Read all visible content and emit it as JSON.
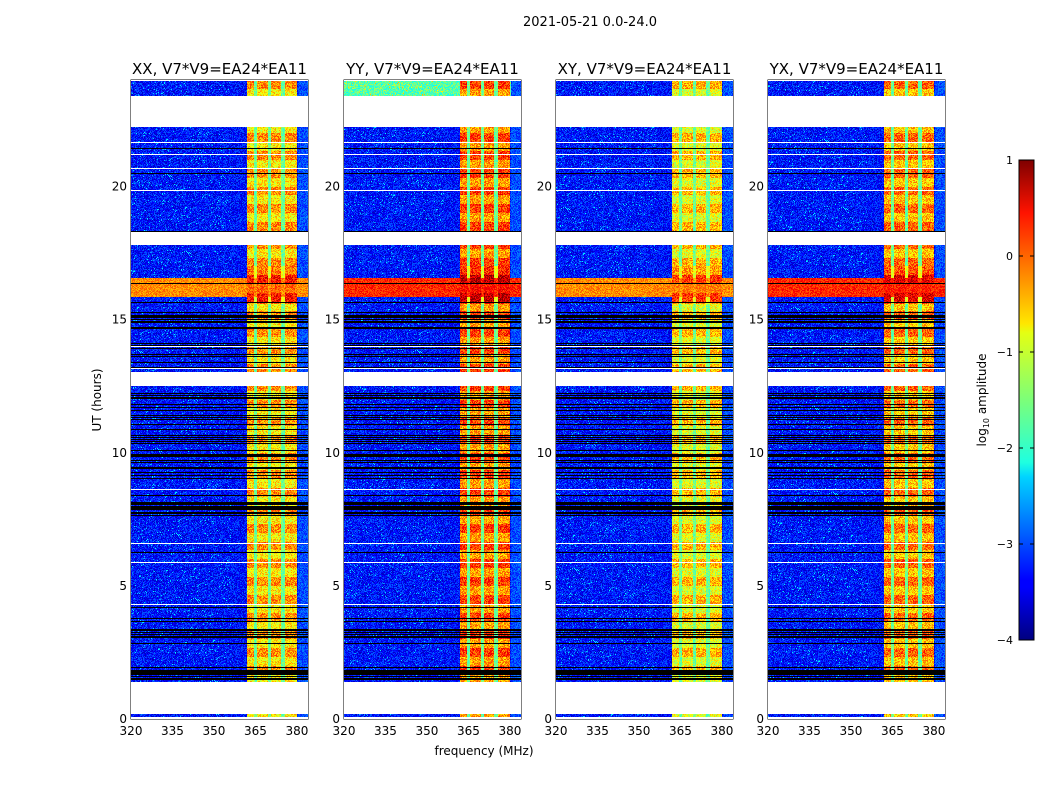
{
  "chart_data": {
    "type": "heatmap",
    "suptitle": "2021-05-21 0.0-24.0",
    "xlabel": "frequency (MHz)",
    "ylabel": "UT (hours)",
    "xlim": [
      320,
      384
    ],
    "ylim": [
      0,
      24
    ],
    "xticks": [
      320,
      335,
      350,
      365,
      380
    ],
    "yticks": [
      0,
      5,
      10,
      15,
      20
    ],
    "panels": [
      {
        "id": "xx",
        "title": "XX, V7*V9=EA24*EA11",
        "rfi_level": -0.6
      },
      {
        "id": "yy",
        "title": "YY, V7*V9=EA24*EA11",
        "rfi_level": -0.2
      },
      {
        "id": "xy",
        "title": "XY, V7*V9=EA24*EA11",
        "rfi_level": -0.8
      },
      {
        "id": "yx",
        "title": "YX, V7*V9=EA24*EA11",
        "rfi_level": -0.4
      }
    ],
    "rfi_band_mhz": [
      362,
      380
    ],
    "rfi_notch_channels_mhz": [
      365,
      370,
      375
    ],
    "strong_interference_hours": [
      15.6,
      17.0
    ],
    "no_data_hours": [
      [
        0.2,
        1.4
      ],
      [
        12.5,
        13.05
      ],
      [
        17.8,
        18.3
      ],
      [
        22.25,
        23.4
      ]
    ],
    "flagged_dense_hours": [
      [
        1.4,
        4.2
      ],
      [
        7.6,
        8.4
      ],
      [
        9.0,
        12.3
      ],
      [
        13.6,
        15.3
      ]
    ],
    "colorbar": {
      "label": "log10 amplitude",
      "label_main": "log",
      "label_sub": "10",
      "label_rest": " amplitude",
      "range": [
        -4,
        1
      ],
      "ticks": [
        -4,
        -3,
        -2,
        -1,
        0,
        1
      ],
      "tick_labels": [
        "−4",
        "−3",
        "−2",
        "−1",
        "0",
        "1"
      ],
      "colormap": "jet"
    }
  }
}
